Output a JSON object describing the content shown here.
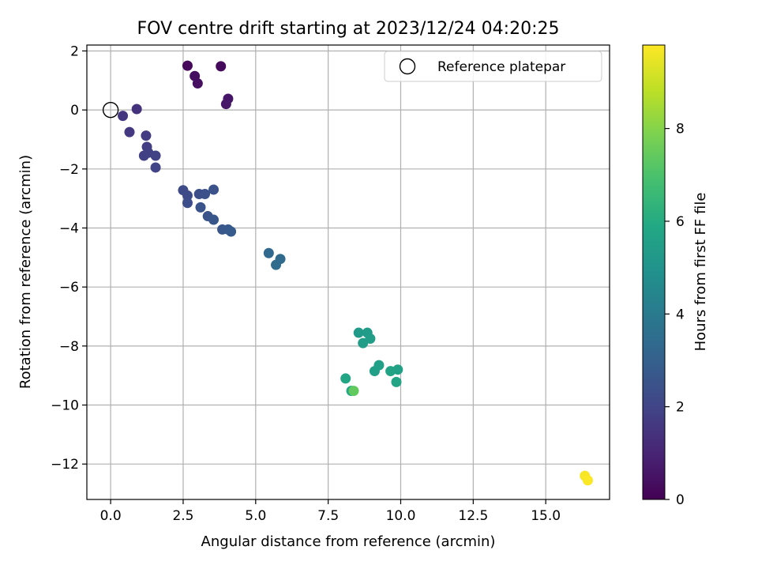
{
  "chart_data": {
    "type": "scatter",
    "title": "FOV centre drift starting at 2023/12/24 04:20:25",
    "xlabel": "Angular distance from reference (arcmin)",
    "ylabel": "Rotation from reference (arcmin)",
    "xlim": [
      -0.82,
      17.2
    ],
    "ylim": [
      -13.2,
      2.2
    ],
    "xticks": [
      0,
      2.5,
      5,
      7.5,
      10,
      12.5,
      15
    ],
    "xtick_labels": [
      "0.0",
      "2.5",
      "5.0",
      "7.5",
      "10.0",
      "12.5",
      "15.0"
    ],
    "yticks": [
      2,
      0,
      -2,
      -4,
      -6,
      -8,
      -10,
      -12
    ],
    "ytick_labels": [
      "2",
      "0",
      "−2",
      "−4",
      "−6",
      "−8",
      "−10",
      "−12"
    ],
    "grid": true,
    "legend": {
      "position": "upper right",
      "entries": [
        {
          "label": "Reference platepar",
          "marker": "open-circle"
        }
      ]
    },
    "reference_point": {
      "x": 0,
      "y": 0
    },
    "colorbar": {
      "label": "Hours from first FF file",
      "colormap": "viridis",
      "range": [
        0,
        9.8
      ],
      "ticks": [
        0,
        2,
        4,
        6,
        8
      ],
      "tick_labels": [
        "0",
        "2",
        "4",
        "6",
        "8"
      ]
    },
    "points": [
      {
        "x": 2.65,
        "y": 1.5,
        "c": 0.2
      },
      {
        "x": 3.8,
        "y": 1.48,
        "c": 0.25
      },
      {
        "x": 2.9,
        "y": 1.15,
        "c": 0.35
      },
      {
        "x": 3.0,
        "y": 0.9,
        "c": 0.4
      },
      {
        "x": 4.05,
        "y": 0.38,
        "c": 0.55
      },
      {
        "x": 3.98,
        "y": 0.2,
        "c": 0.6
      },
      {
        "x": 0.9,
        "y": 0.03,
        "c": 1.4
      },
      {
        "x": 0.42,
        "y": -0.2,
        "c": 1.55
      },
      {
        "x": 0.65,
        "y": -0.75,
        "c": 1.6
      },
      {
        "x": 1.22,
        "y": -0.87,
        "c": 1.7
      },
      {
        "x": 1.25,
        "y": -1.25,
        "c": 1.75
      },
      {
        "x": 1.3,
        "y": -1.45,
        "c": 1.8
      },
      {
        "x": 1.15,
        "y": -1.55,
        "c": 1.85
      },
      {
        "x": 1.55,
        "y": -1.55,
        "c": 1.9
      },
      {
        "x": 1.55,
        "y": -1.95,
        "c": 1.95
      },
      {
        "x": 2.5,
        "y": -2.72,
        "c": 2.2
      },
      {
        "x": 2.65,
        "y": -2.9,
        "c": 2.25
      },
      {
        "x": 2.65,
        "y": -3.15,
        "c": 2.3
      },
      {
        "x": 3.05,
        "y": -2.85,
        "c": 2.35
      },
      {
        "x": 3.25,
        "y": -2.85,
        "c": 2.4
      },
      {
        "x": 3.55,
        "y": -2.7,
        "c": 2.45
      },
      {
        "x": 3.1,
        "y": -3.3,
        "c": 2.5
      },
      {
        "x": 3.35,
        "y": -3.6,
        "c": 2.55
      },
      {
        "x": 3.55,
        "y": -3.72,
        "c": 2.6
      },
      {
        "x": 3.85,
        "y": -4.05,
        "c": 2.65
      },
      {
        "x": 4.05,
        "y": -4.05,
        "c": 2.7
      },
      {
        "x": 4.15,
        "y": -4.12,
        "c": 2.75
      },
      {
        "x": 5.45,
        "y": -4.85,
        "c": 3.3
      },
      {
        "x": 5.85,
        "y": -5.05,
        "c": 3.4
      },
      {
        "x": 5.7,
        "y": -5.25,
        "c": 3.45
      },
      {
        "x": 8.55,
        "y": -7.55,
        "c": 5.3
      },
      {
        "x": 8.85,
        "y": -7.55,
        "c": 5.35
      },
      {
        "x": 8.95,
        "y": -7.75,
        "c": 5.4
      },
      {
        "x": 8.7,
        "y": -7.9,
        "c": 5.45
      },
      {
        "x": 9.25,
        "y": -8.65,
        "c": 5.5
      },
      {
        "x": 9.1,
        "y": -8.85,
        "c": 5.55
      },
      {
        "x": 9.9,
        "y": -8.8,
        "c": 5.6
      },
      {
        "x": 9.65,
        "y": -8.85,
        "c": 5.65
      },
      {
        "x": 9.85,
        "y": -9.22,
        "c": 5.7
      },
      {
        "x": 8.1,
        "y": -9.1,
        "c": 5.75
      },
      {
        "x": 8.3,
        "y": -9.52,
        "c": 5.8
      },
      {
        "x": 8.38,
        "y": -9.52,
        "c": 7.4
      },
      {
        "x": 16.35,
        "y": -12.4,
        "c": 9.7
      },
      {
        "x": 16.45,
        "y": -12.55,
        "c": 9.75
      }
    ]
  }
}
